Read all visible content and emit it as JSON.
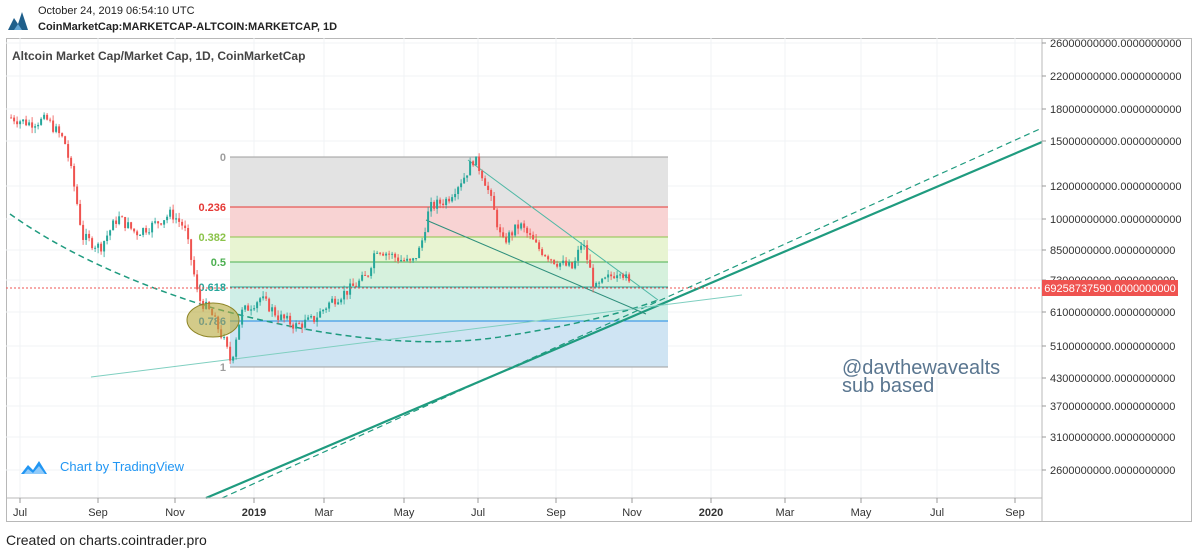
{
  "header": {
    "timestamp": "October 24, 2019 06:54:10 UTC",
    "symbol": "CoinMarketCap:MARKETCAP-ALTCOIN:MARKETCAP, 1D"
  },
  "footer": {
    "credit": "Created on charts.cointrader.pro"
  },
  "brand": {
    "chart_by": "Chart by TradingView"
  },
  "colors": {
    "accent": "#1f9b7f",
    "candle_up": "#26a69a",
    "candle_down": "#ef5350",
    "price_label": "#ef5350",
    "annotation_text": "#5a7690"
  },
  "annotation": {
    "line1": "@davthewavealts",
    "line2": "sub based"
  },
  "chart_data": {
    "type": "candlestick",
    "title": "Altcoin Market Cap/Market Cap, 1D, CoinMarketCap",
    "x_ticks": [
      "Jul",
      "Sep",
      "Nov",
      "2019",
      "Mar",
      "May",
      "Jul",
      "Sep",
      "Nov",
      "2020",
      "Mar",
      "May",
      "Jul",
      "Sep"
    ],
    "y_scale": "log",
    "y_ticks": [
      "26000000000.0000000000",
      "22000000000.0000000000",
      "18000000000.0000000000",
      "15000000000.0000000000",
      "12000000000.0000000000",
      "10000000000.0000000000",
      "8500000000.0000000000",
      "7300000000.0000000000",
      "6100000000.0000000000",
      "5100000000.0000000000",
      "4300000000.0000000000",
      "3700000000.0000000000",
      "3100000000.0000000000",
      "2600000000.0000000000"
    ],
    "last_price_label": "69258737590.0000000000",
    "fib_levels": [
      "0",
      "0.236",
      "0.382",
      "0.5",
      "0.618",
      "0.786",
      "1"
    ],
    "fib_colors": [
      "#9e9e9e",
      "#e53935",
      "#8bc34a",
      "#4caf50",
      "#26a69a",
      "#1e88e5",
      "#9e9e9e"
    ],
    "fib_zone_fills": [
      "#e3e3e3",
      "#f8d3d3",
      "#e8f4d2",
      "#d6f1dd",
      "#cfeee7",
      "#cfe4f3"
    ],
    "candle_path": [
      {
        "t": "2018-06-24",
        "p": 17.0
      },
      {
        "t": "2018-07-08",
        "p": 16.5
      },
      {
        "t": "2018-07-22",
        "p": 16.8
      },
      {
        "t": "2018-08-05",
        "p": 15.0
      },
      {
        "t": "2018-08-19",
        "p": 9.0
      },
      {
        "t": "2018-09-02",
        "p": 8.5
      },
      {
        "t": "2018-09-16",
        "p": 10.0
      },
      {
        "t": "2018-09-30",
        "p": 9.2
      },
      {
        "t": "2018-10-14",
        "p": 9.6
      },
      {
        "t": "2018-10-28",
        "p": 10.2
      },
      {
        "t": "2018-11-07",
        "p": 9.5
      },
      {
        "t": "2018-11-18",
        "p": 6.5
      },
      {
        "t": "2018-11-28",
        "p": 6.0
      },
      {
        "t": "2018-12-08",
        "p": 5.2
      },
      {
        "t": "2018-12-14",
        "p": 4.6
      },
      {
        "t": "2018-12-22",
        "p": 6.0
      },
      {
        "t": "2019-01-06",
        "p": 6.5
      },
      {
        "t": "2019-01-20",
        "p": 5.9
      },
      {
        "t": "2019-02-03",
        "p": 5.6
      },
      {
        "t": "2019-02-17",
        "p": 5.8
      },
      {
        "t": "2019-03-03",
        "p": 6.4
      },
      {
        "t": "2019-03-17",
        "p": 6.8
      },
      {
        "t": "2019-03-31",
        "p": 7.3
      },
      {
        "t": "2019-04-07",
        "p": 8.5
      },
      {
        "t": "2019-04-21",
        "p": 8.1
      },
      {
        "t": "2019-05-05",
        "p": 7.8
      },
      {
        "t": "2019-05-12",
        "p": 8.5
      },
      {
        "t": "2019-05-19",
        "p": 10.5
      },
      {
        "t": "2019-06-02",
        "p": 11.0
      },
      {
        "t": "2019-06-16",
        "p": 12.5
      },
      {
        "t": "2019-06-23",
        "p": 13.7
      },
      {
        "t": "2019-07-01",
        "p": 12.3
      },
      {
        "t": "2019-07-08",
        "p": 10.5
      },
      {
        "t": "2019-07-15",
        "p": 8.7
      },
      {
        "t": "2019-07-29",
        "p": 9.6
      },
      {
        "t": "2019-08-12",
        "p": 8.5
      },
      {
        "t": "2019-08-26",
        "p": 7.9
      },
      {
        "t": "2019-09-09",
        "p": 7.6
      },
      {
        "t": "2019-09-16",
        "p": 8.8
      },
      {
        "t": "2019-09-23",
        "p": 7.4
      },
      {
        "t": "2019-09-26",
        "p": 6.8
      },
      {
        "t": "2019-10-06",
        "p": 7.2
      },
      {
        "t": "2019-10-16",
        "p": 7.6
      },
      {
        "t": "2019-10-24",
        "p": 6.9
      }
    ],
    "grid": true
  }
}
